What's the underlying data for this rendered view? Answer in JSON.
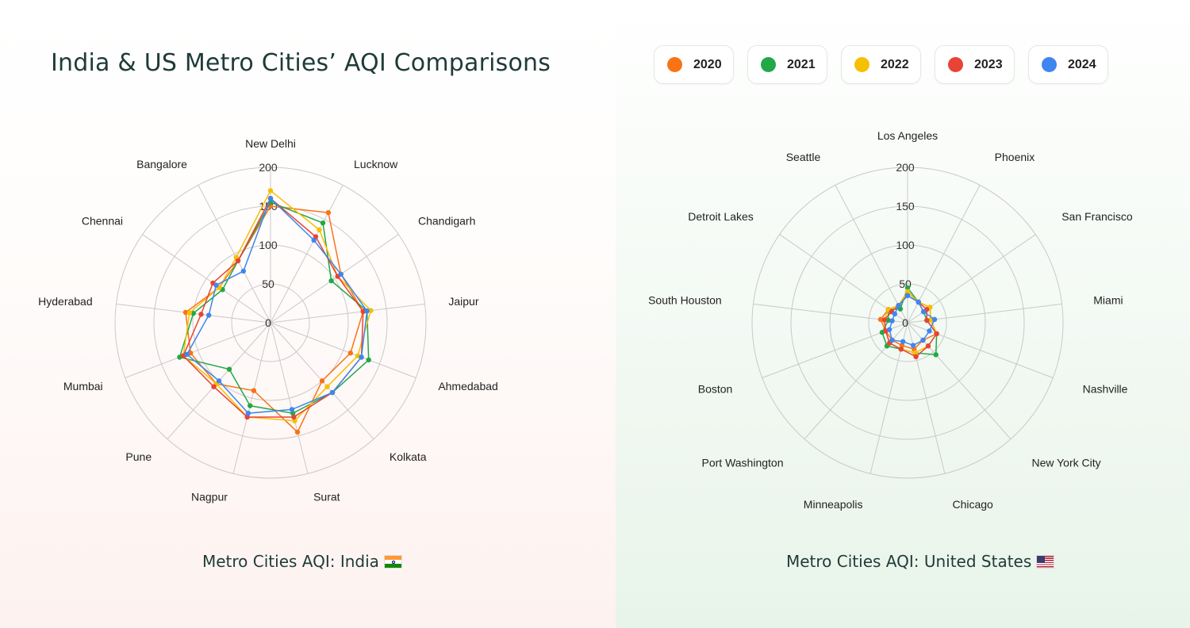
{
  "title": "India & US Metro Cities’ AQI Comparisons",
  "legend": [
    {
      "label": "2020",
      "color": "#f97316"
    },
    {
      "label": "2021",
      "color": "#22a847"
    },
    {
      "label": "2022",
      "color": "#f5c000"
    },
    {
      "label": "2023",
      "color": "#e84335"
    },
    {
      "label": "2024",
      "color": "#3f86f0"
    }
  ],
  "captions": {
    "india": "Metro Cities AQI: India",
    "us": "Metro Cities AQI: United States"
  },
  "chart_data": [
    {
      "type": "radar",
      "title": "Metro Cities AQI: India",
      "rlim": [
        0,
        200
      ],
      "ticks": [
        "0",
        "50",
        "100",
        "150",
        "200"
      ],
      "categories": [
        "New Delhi",
        "Lucknow",
        "Chandigarh",
        "Jaipur",
        "Ahmedabad",
        "Kolkata",
        "Surat",
        "Nagpur",
        "Pune",
        "Mumbai",
        "Hyderabad",
        "Chennai",
        "Bangalore"
      ],
      "series": [
        {
          "name": "2020",
          "color": "#f97316",
          "values": [
            150,
            160,
            110,
            120,
            110,
            100,
            145,
            90,
            105,
            110,
            110,
            80,
            90
          ]
        },
        {
          "name": "2021",
          "color": "#22a847",
          "values": [
            155,
            145,
            95,
            125,
            135,
            120,
            120,
            110,
            80,
            125,
            100,
            75,
            90
          ]
        },
        {
          "name": "2022",
          "color": "#f5c000",
          "values": [
            170,
            135,
            105,
            130,
            120,
            110,
            130,
            125,
            105,
            120,
            105,
            80,
            95
          ]
        },
        {
          "name": "2023",
          "color": "#e84335",
          "values": [
            160,
            125,
            105,
            120,
            125,
            120,
            125,
            125,
            110,
            120,
            90,
            90,
            90
          ]
        },
        {
          "name": "2024",
          "color": "#3f86f0",
          "values": [
            160,
            120,
            110,
            125,
            125,
            120,
            115,
            120,
            100,
            115,
            80,
            85,
            75
          ]
        }
      ]
    },
    {
      "type": "radar",
      "title": "Metro Cities AQI: United States",
      "rlim": [
        0,
        200
      ],
      "ticks": [
        "0",
        "50",
        "100",
        "150",
        "200"
      ],
      "categories": [
        "Los Angeles",
        "Phoenix",
        "San Francisco",
        "Miami",
        "Nashville",
        "New York City",
        "Chicago",
        "Minneapolis",
        "Port Washington",
        "Boston",
        "South Houston",
        "Detroit Lakes",
        "Seattle"
      ],
      "series": [
        {
          "name": "2020",
          "color": "#f97316",
          "values": [
            40,
            30,
            35,
            30,
            40,
            30,
            35,
            30,
            30,
            30,
            35,
            30,
            25
          ]
        },
        {
          "name": "2021",
          "color": "#22a847",
          "values": [
            45,
            30,
            25,
            25,
            40,
            55,
            40,
            35,
            40,
            35,
            25,
            30,
            20
          ]
        },
        {
          "name": "2022",
          "color": "#f5c000",
          "values": [
            40,
            30,
            35,
            30,
            40,
            40,
            40,
            35,
            35,
            30,
            30,
            30,
            25
          ]
        },
        {
          "name": "2023",
          "color": "#e84335",
          "values": [
            35,
            30,
            30,
            25,
            40,
            40,
            45,
            35,
            35,
            30,
            30,
            25,
            25
          ]
        },
        {
          "name": "2024",
          "color": "#3f86f0",
          "values": [
            35,
            30,
            25,
            35,
            30,
            30,
            30,
            25,
            30,
            25,
            20,
            20,
            25
          ]
        }
      ]
    }
  ]
}
